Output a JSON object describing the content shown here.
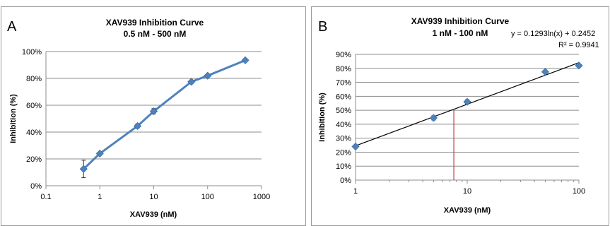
{
  "chart_data": [
    {
      "type": "line",
      "panel_label": "A",
      "title": "XAV939 Inhibition Curve",
      "subtitle": "0.5 nM - 500 nM",
      "xlabel": "XAV939 (nM)",
      "ylabel": "Inhibition (%)",
      "xscale": "log",
      "xlim": [
        0.1,
        1000
      ],
      "ylim": [
        0,
        100
      ],
      "xticks": [
        "0.1",
        "1",
        "10",
        "100",
        "1000"
      ],
      "yticks": [
        "0%",
        "20%",
        "40%",
        "60%",
        "80%",
        "100%"
      ],
      "grid": "horizontal",
      "color": "#4f81bd",
      "series": [
        {
          "x": [
            0.5,
            1,
            5,
            10,
            50,
            100,
            500
          ],
          "y": [
            12.5,
            24,
            44.5,
            55.5,
            77.5,
            82,
            93.5
          ],
          "error": [
            6.5,
            1,
            1.5,
            2,
            1,
            1,
            1
          ]
        }
      ]
    },
    {
      "type": "scatter",
      "panel_label": "B",
      "title": "XAV939 Inhibition Curve",
      "subtitle": "1 nM - 100 nM",
      "xlabel": "XAV939 (nM)",
      "ylabel": "Inhibition (%)",
      "xscale": "log",
      "xlim": [
        1,
        100
      ],
      "ylim": [
        0,
        90
      ],
      "xticks": [
        "1",
        "10",
        "100"
      ],
      "yticks": [
        "0%",
        "10%",
        "20%",
        "30%",
        "40%",
        "50%",
        "60%",
        "70%",
        "80%",
        "90%"
      ],
      "grid": "horizontal",
      "color": "#4f81bd",
      "series": [
        {
          "x": [
            1,
            5,
            10,
            50,
            100
          ],
          "y": [
            24,
            44.5,
            56,
            77.5,
            82
          ],
          "error": [
            1,
            1.5,
            1.5,
            1,
            1
          ]
        }
      ],
      "trendline": {
        "type": "logarithmic",
        "slope": 0.1293,
        "intercept": 0.2452,
        "equation": "y = 0.1293ln(x) + 0.2452",
        "r_squared": "R² = 0.9941",
        "color": "#000000"
      },
      "marker_line": {
        "x": 7.59,
        "y": 50,
        "color": "#c0504d"
      }
    }
  ]
}
